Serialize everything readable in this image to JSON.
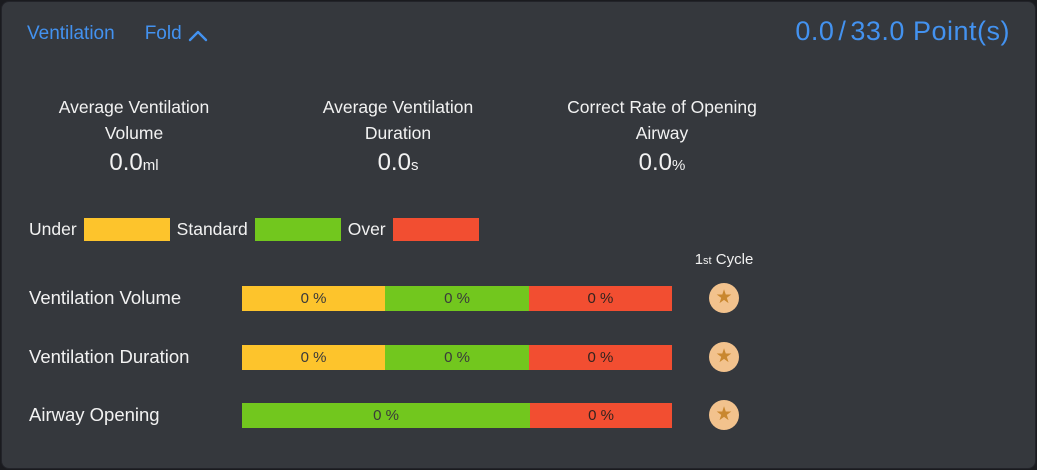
{
  "header": {
    "title": "Ventilation",
    "fold_label": "Fold",
    "score_current": "0.0",
    "score_divider": "/",
    "score_total": "33.0",
    "score_suffix": "Point(s)"
  },
  "colors": {
    "accent_blue": "#4392f0",
    "under_yellow": "#fdc42c",
    "standard_green": "#72c71e",
    "over_red": "#f24e31",
    "panel_background": "#35383d",
    "badge_background": "#f2c28d",
    "badge_star": "#c9872f"
  },
  "stats": [
    {
      "title_line1": "Average Ventilation",
      "title_line2": "Volume",
      "value": "0.0",
      "unit": "ml"
    },
    {
      "title_line1": "Average Ventilation",
      "title_line2": "Duration",
      "value": "0.0",
      "unit": "s"
    },
    {
      "title_line1": "Correct Rate of Opening",
      "title_line2": "Airway",
      "value": "0.0",
      "unit": "%"
    }
  ],
  "legend": [
    {
      "label": "Under",
      "type": "under"
    },
    {
      "label": "Standard",
      "type": "standard"
    },
    {
      "label": "Over",
      "type": "over"
    }
  ],
  "cycle_header": {
    "num": "1",
    "ord": "st",
    "word": " Cycle"
  },
  "rows": [
    {
      "label": "Ventilation Volume",
      "segments": [
        {
          "type": "under",
          "pct": 33.3,
          "text": "0 %"
        },
        {
          "type": "standard",
          "pct": 33.4,
          "text": "0 %"
        },
        {
          "type": "over",
          "pct": 33.3,
          "text": "0 %"
        }
      ],
      "badge": "star"
    },
    {
      "label": "Ventilation Duration",
      "segments": [
        {
          "type": "under",
          "pct": 33.3,
          "text": "0 %"
        },
        {
          "type": "standard",
          "pct": 33.4,
          "text": "0 %"
        },
        {
          "type": "over",
          "pct": 33.3,
          "text": "0 %"
        }
      ],
      "badge": "star"
    },
    {
      "label": "Airway Opening",
      "segments": [
        {
          "type": "standard",
          "pct": 67.0,
          "text": "0 %"
        },
        {
          "type": "over",
          "pct": 33.0,
          "text": "0 %"
        }
      ],
      "badge": "star"
    }
  ]
}
